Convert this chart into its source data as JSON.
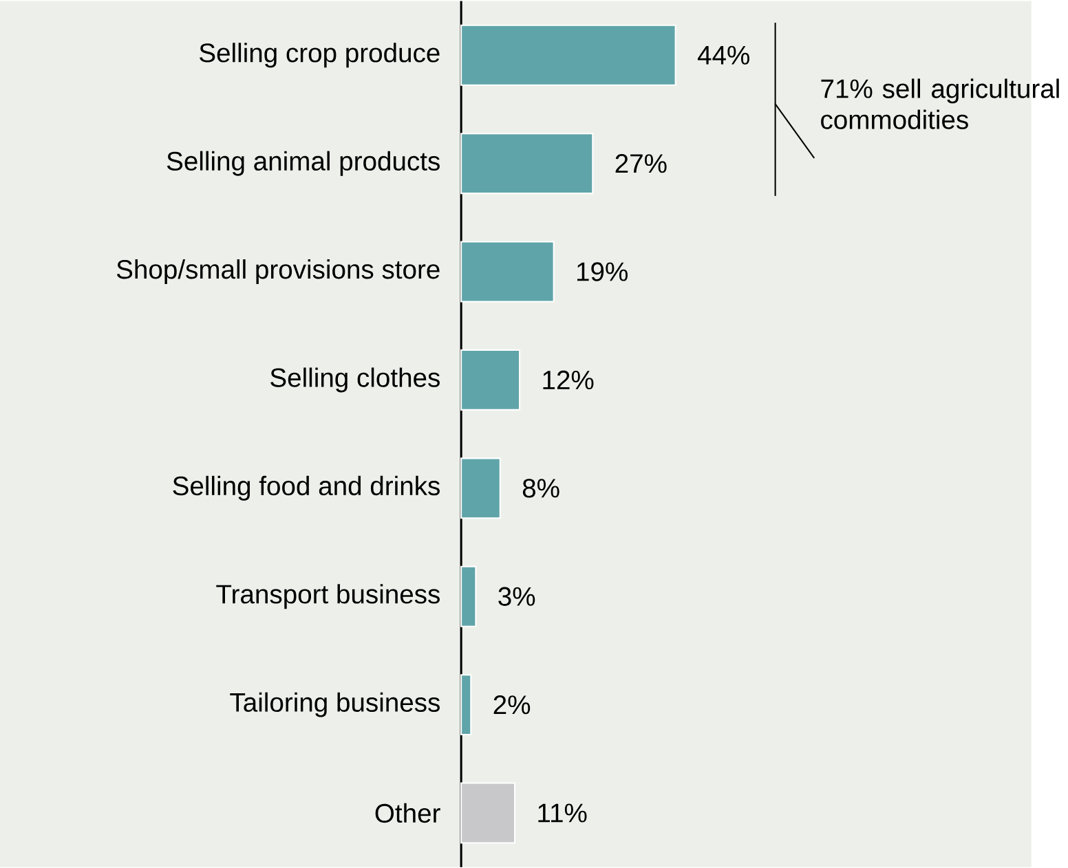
{
  "chart_data": {
    "type": "bar",
    "orientation": "horizontal",
    "categories": [
      "Selling crop produce",
      "Selling animal products",
      "Shop/small provisions store",
      "Selling clothes",
      "Selling food and drinks",
      "Transport business",
      "Tailoring business",
      "Other"
    ],
    "values": [
      44,
      27,
      19,
      12,
      8,
      3,
      2,
      11
    ],
    "value_labels": [
      "44%",
      "27%",
      "19%",
      "12%",
      "8%",
      "3%",
      "2%",
      "11%"
    ],
    "colors": [
      "#5fa4a8",
      "#5fa4a8",
      "#5fa4a8",
      "#5fa4a8",
      "#5fa4a8",
      "#5fa4a8",
      "#5fa4a8",
      "#c8c8ca"
    ],
    "annotations": [
      "71% sell agricultural commodities"
    ]
  }
}
